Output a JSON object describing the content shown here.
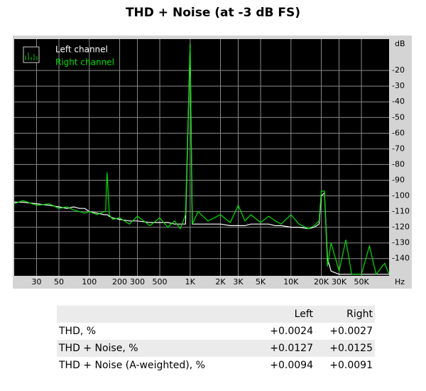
{
  "chart_data": {
    "type": "line",
    "title": "THD + Noise (at -3 dB FS)",
    "x": [
      18,
      22,
      30,
      40,
      50,
      60,
      70,
      80,
      90,
      100,
      120,
      140,
      145,
      150,
      158,
      170,
      200,
      250,
      300,
      400,
      500,
      600,
      700,
      800,
      900,
      1000,
      1050,
      1200,
      1500,
      2000,
      2500,
      3000,
      3500,
      4000,
      5000,
      6000,
      7000,
      8000,
      10000,
      12000,
      15000,
      17000,
      19000,
      20000,
      21500,
      23000,
      25000,
      30000,
      35000,
      40000,
      50000,
      60000,
      70000,
      85000,
      94000
    ],
    "series": [
      {
        "name": "Left channel",
        "color": "#ffffff",
        "values": [
          -104,
          -104,
          -105,
          -106,
          -107,
          -108,
          -107,
          -108,
          -108,
          -110,
          -111,
          -112,
          -112,
          -112,
          -113,
          -114,
          -115,
          -116,
          -116,
          -117,
          -117,
          -117,
          -118,
          -118,
          -118,
          -3,
          -118,
          -118,
          -118,
          -118,
          -119,
          -119,
          -119,
          -118,
          -118,
          -118,
          -119,
          -119,
          -120,
          -120,
          -121,
          -120,
          -118,
          -100,
          -98,
          -140,
          -148,
          -150,
          -150,
          -150,
          -150,
          -150,
          -150,
          -150,
          -150
        ]
      },
      {
        "name": "Right channel",
        "color": "#00e000",
        "values": [
          -105,
          -103,
          -106,
          -105,
          -108,
          -107,
          -109,
          -110,
          -111,
          -110,
          -112,
          -110,
          -110,
          -85,
          -112,
          -115,
          -114,
          -118,
          -113,
          -119,
          -114,
          -120,
          -116,
          -121,
          -112,
          -3,
          -118,
          -110,
          -116,
          -112,
          -117,
          -106,
          -116,
          -112,
          -117,
          -113,
          -116,
          -118,
          -112,
          -118,
          -121,
          -119,
          -116,
          -97,
          -97,
          -145,
          -130,
          -148,
          -128,
          -150,
          -150,
          -132,
          -150,
          -143,
          -150
        ]
      }
    ],
    "y_unit": "dB",
    "x_unit": "Hz",
    "xlim": [
      18,
      94000
    ],
    "log_x": true,
    "xticks": [
      30,
      50,
      100,
      200,
      300,
      500,
      {
        "value": 1000,
        "label": "1K"
      },
      {
        "value": 2000,
        "label": "2K"
      },
      {
        "value": 3000,
        "label": "3K"
      },
      {
        "value": 5000,
        "label": "5K"
      },
      {
        "value": 10000,
        "label": "10K"
      },
      {
        "value": 20000,
        "label": "20K"
      },
      {
        "value": 30000,
        "label": "30K"
      },
      {
        "value": 50000,
        "label": "50K"
      }
    ],
    "ylim": [
      -151,
      0
    ],
    "yticks": [
      -20,
      -30,
      -40,
      -50,
      -60,
      -70,
      -80,
      -90,
      -100,
      -110,
      -120,
      -130,
      -140
    ],
    "grid": true,
    "legend": "upper left"
  },
  "table": {
    "header": [
      "Left",
      "Right"
    ],
    "rows": [
      [
        "THD, %",
        "+0.0024",
        "+0.0027"
      ],
      [
        "THD + Noise, %",
        "+0.0127",
        "+0.0125"
      ],
      [
        "THD + Noise (A-weighted), %",
        "+0.0094",
        "+0.0091"
      ]
    ]
  }
}
